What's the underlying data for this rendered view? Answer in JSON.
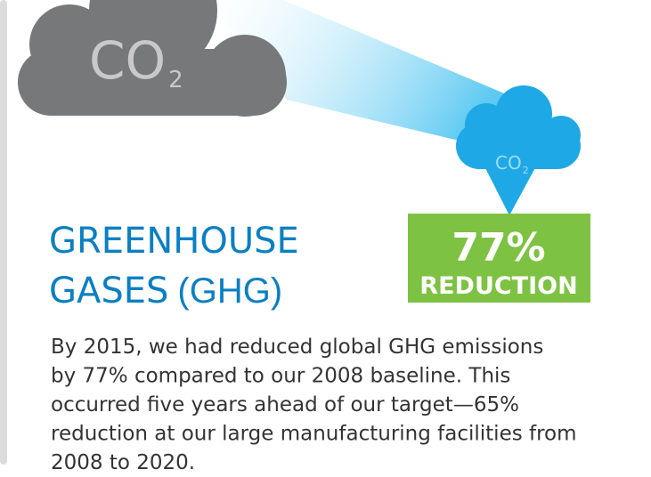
{
  "cloud_large": {
    "text": "CO",
    "subscript": "2"
  },
  "cloud_small": {
    "text": "CO",
    "subscript": "2"
  },
  "badge": {
    "value": "77%",
    "label": "REDUCTION"
  },
  "heading": {
    "line1": "GREENHOUSE",
    "line2": "GASES",
    "abbr": "(GHG)"
  },
  "paragraph": [
    "By 2015, we had reduced global GHG emissions",
    "by 77% compared to our 2008 baseline. This",
    "occurred five years ahead of our target—65%",
    "reduction at our large manufacturing facilities from",
    "2008 to 2020."
  ]
}
